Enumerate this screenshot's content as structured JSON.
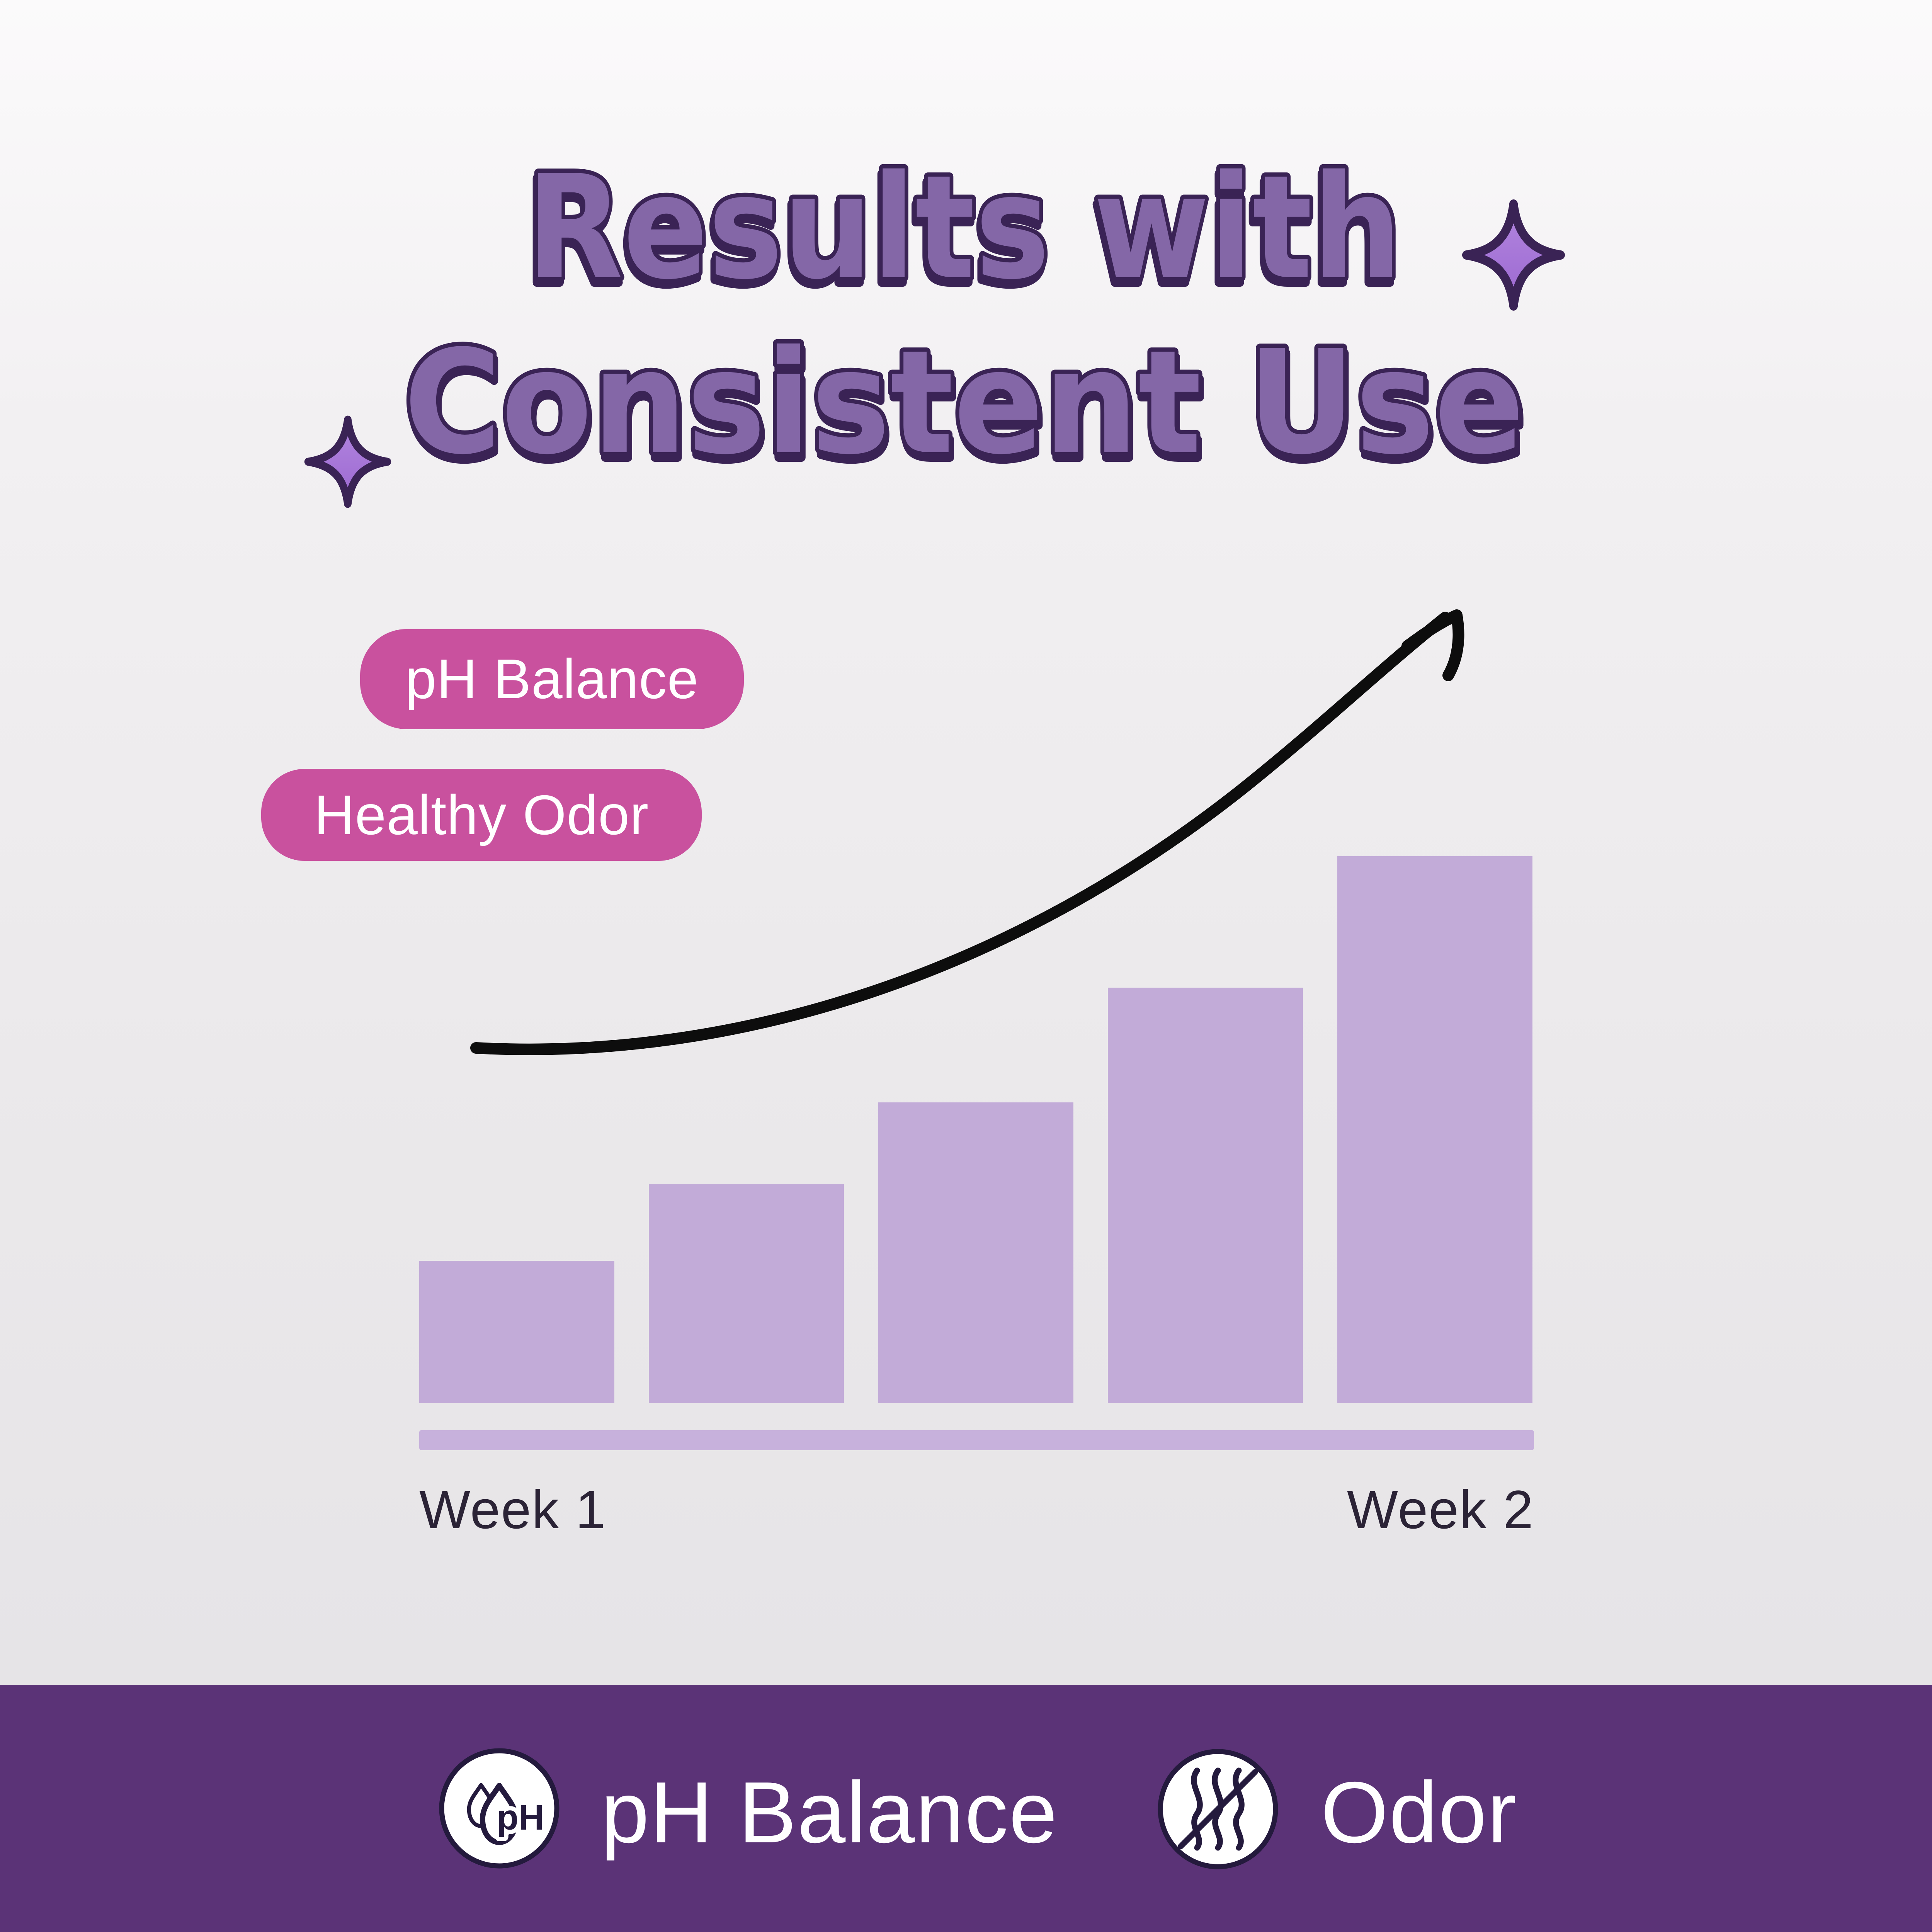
{
  "title": {
    "line1": "Results with",
    "line2": "Consistent Use"
  },
  "decorations": {
    "sparkle_left": "four-point-sparkle-icon",
    "sparkle_right": "four-point-sparkle-icon",
    "trend_arrow": "hand-drawn-curved-up-arrow"
  },
  "badges": [
    {
      "label": "pH Balance"
    },
    {
      "label": "Healthy Odor"
    }
  ],
  "chart_data": {
    "type": "bar",
    "title": "Results with Consistent Use",
    "categories": [
      "Week 1",
      "",
      "",
      "",
      "Week 2"
    ],
    "values": [
      26,
      40,
      55,
      76,
      100
    ],
    "x_axis_labels": [
      "Week 1",
      "Week 2"
    ],
    "xlabel": "",
    "ylabel": "",
    "ylim": [
      0,
      100
    ],
    "grid": false,
    "legend": false,
    "bar_color": "#c2abd8",
    "annotation": "black hand-drawn exponential arrow rising from Week 1 to above Week 2 bar"
  },
  "footer": {
    "items": [
      {
        "icon": "ph-droplets-icon",
        "label": "pH Balance"
      },
      {
        "icon": "no-odor-waves-icon",
        "label": "Odor"
      }
    ]
  },
  "colors": {
    "background_top": "#fbfafb",
    "background_bottom": "#e6e4e7",
    "title_fill": "#8467a7",
    "title_outline": "#3a2355",
    "badge_pink": "#c9519e",
    "badge_text": "#ffffff",
    "bar_fill": "#c2abd8",
    "axis_fill": "#c7b1dc",
    "axis_label": "#2b2336",
    "arrow": "#0d0d0d",
    "sparkle_light": "#b286df",
    "sparkle_dark": "#9c68d1",
    "footer_background": "#5b3377",
    "footer_text": "#ffffff",
    "icon_ink": "#241a3d",
    "icon_bg": "#ffffff"
  }
}
